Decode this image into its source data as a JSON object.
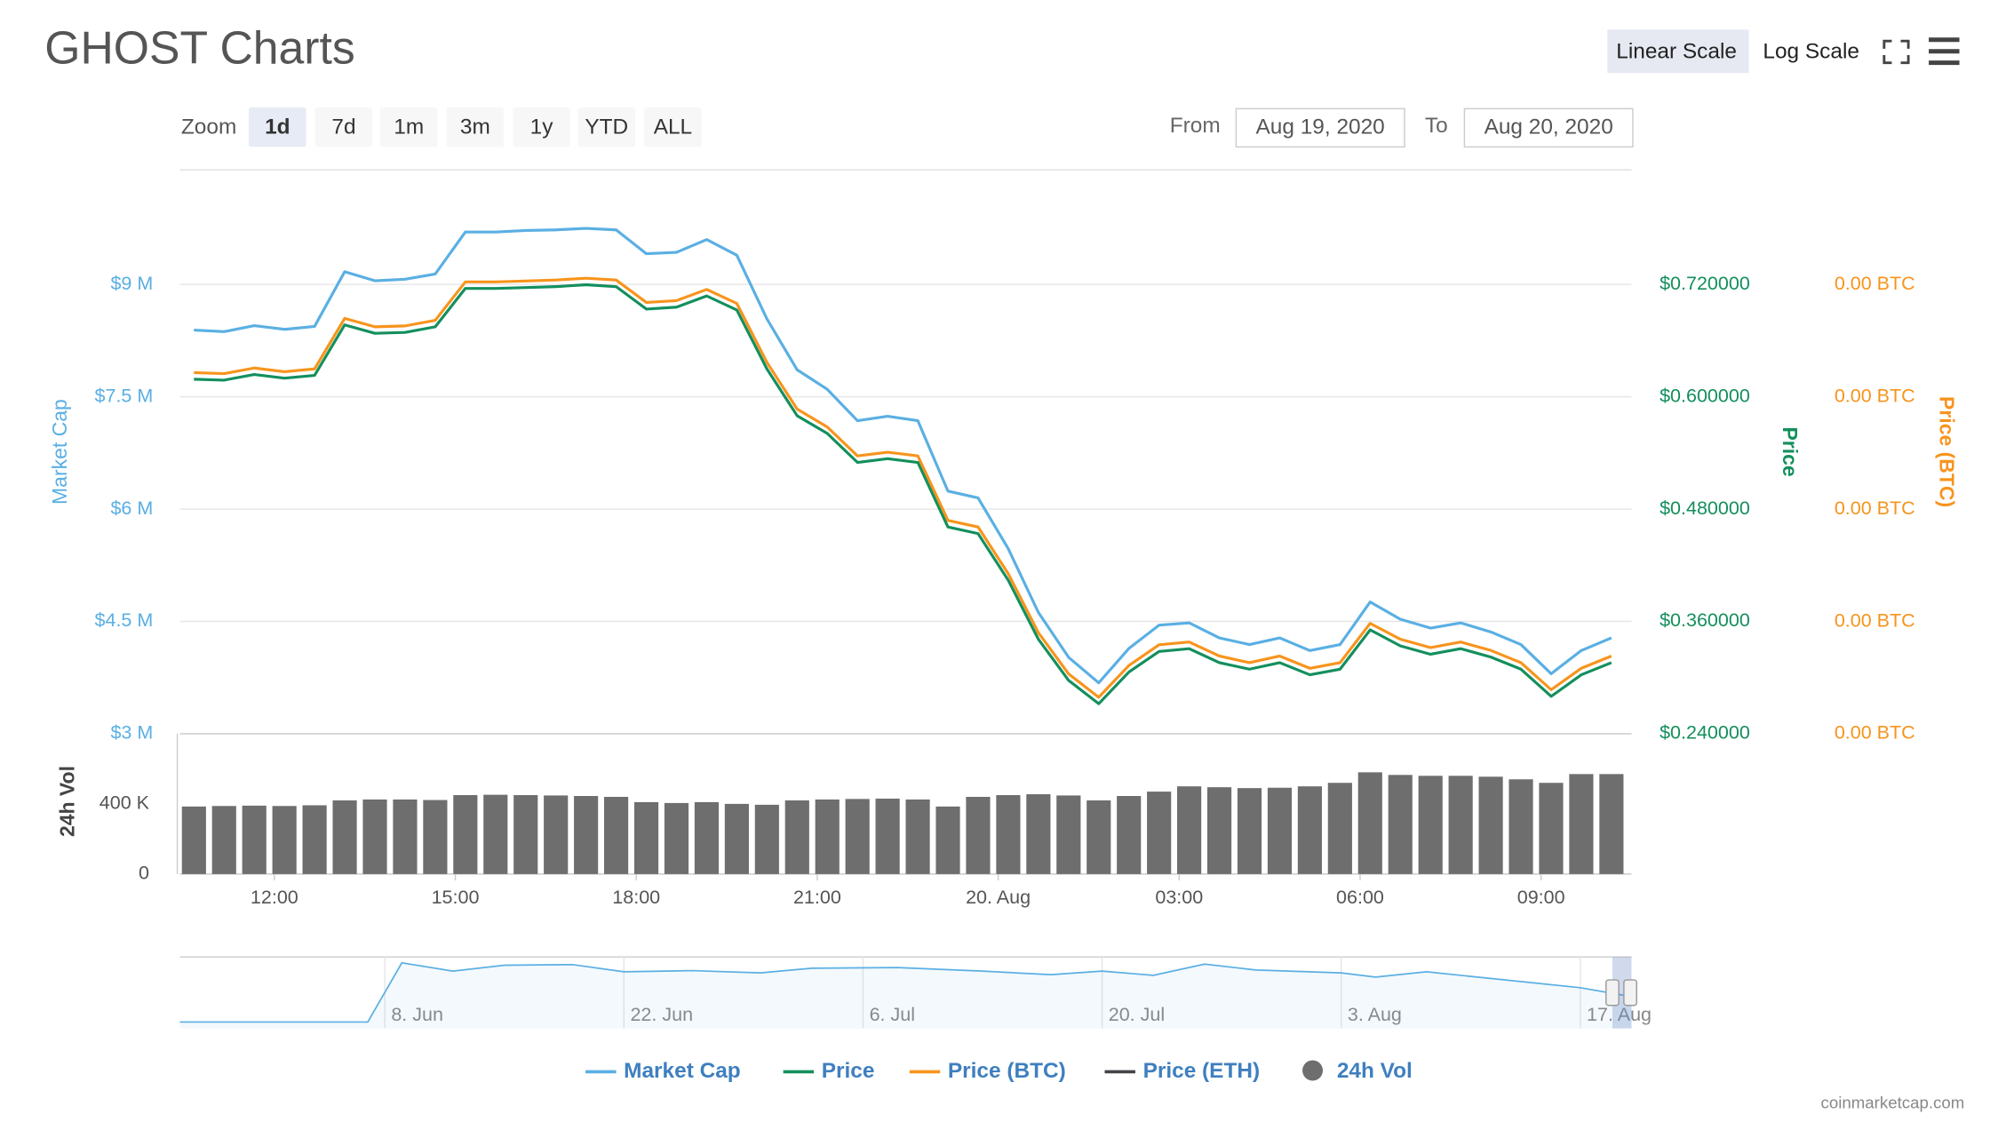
{
  "header": {
    "title": "GHOST Charts",
    "scale_buttons": [
      "Linear Scale",
      "Log Scale"
    ],
    "active_scale": "Linear Scale"
  },
  "toolbar": {
    "zoom_label": "Zoom",
    "zoom_buttons": [
      "1d",
      "7d",
      "1m",
      "3m",
      "1y",
      "YTD",
      "ALL"
    ],
    "active_zoom": "1d",
    "from_label": "From",
    "from_date": "Aug 19, 2020",
    "to_label": "To",
    "to_date": "Aug 20, 2020"
  },
  "chart_data": {
    "type": "line",
    "x": [
      "Aug 19 10:40",
      "Aug 19 11:10",
      "Aug 19 11:40",
      "Aug 19 12:10",
      "Aug 19 12:40",
      "Aug 19 13:10",
      "Aug 19 13:40",
      "Aug 19 14:10",
      "Aug 19 14:40",
      "Aug 19 15:10",
      "Aug 19 15:40",
      "Aug 19 16:10",
      "Aug 19 16:40",
      "Aug 19 17:10",
      "Aug 19 17:40",
      "Aug 19 18:10",
      "Aug 19 18:40",
      "Aug 19 19:10",
      "Aug 19 19:40",
      "Aug 19 20:10",
      "Aug 19 20:40",
      "Aug 19 21:10",
      "Aug 19 21:40",
      "Aug 19 22:10",
      "Aug 19 22:40",
      "Aug 19 23:10",
      "Aug 19 23:40",
      "Aug 20 00:10",
      "Aug 20 00:40",
      "Aug 20 01:10",
      "Aug 20 01:40",
      "Aug 20 02:10",
      "Aug 20 02:40",
      "Aug 20 03:10",
      "Aug 20 03:40",
      "Aug 20 04:10",
      "Aug 20 04:40",
      "Aug 20 05:10",
      "Aug 20 05:40",
      "Aug 20 06:10",
      "Aug 20 06:40",
      "Aug 20 07:10",
      "Aug 20 07:40",
      "Aug 20 08:10",
      "Aug 20 08:40",
      "Aug 20 09:10",
      "Aug 20 09:40",
      "Aug 20 10:10"
    ],
    "xlim": [
      "Aug 19 10:26",
      "Aug 20 10:30"
    ],
    "xticks": [
      {
        "value": "Aug 19 12:00",
        "label": "12:00"
      },
      {
        "value": "Aug 19 15:00",
        "label": "15:00"
      },
      {
        "value": "Aug 19 18:00",
        "label": "18:00"
      },
      {
        "value": "Aug 19 21:00",
        "label": "21:00"
      },
      {
        "value": "Aug 20 00:00",
        "label": "20. Aug"
      },
      {
        "value": "Aug 20 03:00",
        "label": "03:00"
      },
      {
        "value": "Aug 20 06:00",
        "label": "06:00"
      },
      {
        "value": "Aug 20 09:00",
        "label": "09:00"
      }
    ],
    "series": [
      {
        "name": "Market Cap",
        "color": "#5aafe3",
        "axis": "y",
        "values": [
          8390000,
          8370000,
          8450000,
          8400000,
          8440000,
          9170000,
          9050000,
          9070000,
          9140000,
          9700000,
          9700000,
          9720000,
          9730000,
          9750000,
          9730000,
          9410000,
          9430000,
          9600000,
          9390000,
          8540000,
          7860000,
          7600000,
          7180000,
          7240000,
          7180000,
          6240000,
          6150000,
          5470000,
          4620000,
          4020000,
          3680000,
          4140000,
          4450000,
          4480000,
          4280000,
          4190000,
          4280000,
          4110000,
          4190000,
          4760000,
          4530000,
          4410000,
          4480000,
          4360000,
          4190000,
          3800000,
          4110000,
          4280000
        ]
      },
      {
        "name": "Price",
        "color": "#138f5d",
        "axis": "y2",
        "values": [
          0.619,
          0.618,
          0.624,
          0.62,
          0.623,
          0.677,
          0.668,
          0.669,
          0.675,
          0.716,
          0.716,
          0.717,
          0.718,
          0.72,
          0.718,
          0.694,
          0.696,
          0.708,
          0.693,
          0.63,
          0.58,
          0.561,
          0.53,
          0.534,
          0.53,
          0.461,
          0.454,
          0.404,
          0.341,
          0.297,
          0.272,
          0.306,
          0.328,
          0.331,
          0.316,
          0.309,
          0.316,
          0.303,
          0.309,
          0.351,
          0.334,
          0.325,
          0.331,
          0.322,
          0.309,
          0.28,
          0.303,
          0.316
        ]
      },
      {
        "name": "Price (BTC)",
        "color": "#f7941d",
        "axis": "y3",
        "values": [
          5.217e-05,
          5.208e-05,
          5.258e-05,
          5.225e-05,
          5.25e-05,
          5.7e-05,
          5.625e-05,
          5.633e-05,
          5.683e-05,
          6.025e-05,
          6.025e-05,
          6.033e-05,
          6.042e-05,
          6.058e-05,
          6.042e-05,
          5.842e-05,
          5.858e-05,
          5.958e-05,
          5.833e-05,
          5.308e-05,
          4.892e-05,
          4.733e-05,
          4.475e-05,
          4.508e-05,
          4.475e-05,
          3.9e-05,
          3.842e-05,
          3.425e-05,
          2.9e-05,
          2.533e-05,
          2.325e-05,
          2.608e-05,
          2.792e-05,
          2.817e-05,
          2.692e-05,
          2.633e-05,
          2.692e-05,
          2.583e-05,
          2.633e-05,
          2.983e-05,
          2.842e-05,
          2.767e-05,
          2.817e-05,
          2.742e-05,
          2.633e-05,
          2.392e-05,
          2.583e-05,
          2.692e-05
        ]
      },
      {
        "name": "24h Vol",
        "color": "#6e6e6e",
        "axis": "y4",
        "type": "column",
        "values": [
          385000,
          388000,
          390000,
          388000,
          392000,
          420000,
          425000,
          425000,
          422000,
          450000,
          452000,
          450000,
          448000,
          445000,
          440000,
          410000,
          405000,
          410000,
          400000,
          395000,
          420000,
          425000,
          428000,
          430000,
          425000,
          385000,
          440000,
          450000,
          455000,
          448000,
          420000,
          445000,
          470000,
          500000,
          495000,
          490000,
          492000,
          500000,
          520000,
          580000,
          565000,
          560000,
          560000,
          555000,
          540000,
          520000,
          570000,
          570000
        ]
      }
    ],
    "ylabel": "Market Cap",
    "ylim": [
      3000000,
      10530000
    ],
    "yticks": [
      {
        "value": 3000000,
        "label": "$3 M"
      },
      {
        "value": 4500000,
        "label": "$4.5 M"
      },
      {
        "value": 6000000,
        "label": "$6 M"
      },
      {
        "value": 7500000,
        "label": "$7.5 M"
      },
      {
        "value": 9000000,
        "label": "$9 M"
      }
    ],
    "y2label": "Price",
    "y2lim": [
      0.24,
      0.8427
    ],
    "y2ticks": [
      {
        "value": 0.24,
        "label": "$0.240000"
      },
      {
        "value": 0.36,
        "label": "$0.360000"
      },
      {
        "value": 0.48,
        "label": "$0.480000"
      },
      {
        "value": 0.6,
        "label": "$0.600000"
      },
      {
        "value": 0.72,
        "label": "$0.720000"
      }
    ],
    "y3label": "Price (BTC)",
    "y3lim": [
      2e-05,
      7.023e-05
    ],
    "y3ticks": [
      {
        "value": 2e-05,
        "label": "0.00 BTC"
      },
      {
        "value": 3e-05,
        "label": "0.00 BTC"
      },
      {
        "value": 4e-05,
        "label": "0.00 BTC"
      },
      {
        "value": 5e-05,
        "label": "0.00 BTC"
      },
      {
        "value": 6e-05,
        "label": "0.00 BTC"
      }
    ],
    "y4label": "24h Vol",
    "y4lim": [
      0,
      800000
    ],
    "y4ticks": [
      0,
      {
        "value": 400000,
        "label": "400 K"
      }
    ],
    "grid": true
  },
  "navigator": {
    "x": [
      "27. May",
      "7. Jun",
      "9. Jun",
      "12. Jun",
      "15. Jun",
      "19. Jun",
      "22. Jun",
      "26. Jun",
      "30. Jun",
      "3. Jul",
      "8. Jul",
      "13. Jul",
      "17. Jul",
      "20. Jul",
      "23. Jul",
      "26. Jul",
      "29. Jul",
      "3. Aug",
      "5. Aug",
      "8. Aug",
      "12. Aug",
      "17. Aug",
      "20. Aug"
    ],
    "values": [
      0,
      0,
      10000000,
      8600000,
      9600000,
      9700000,
      8500000,
      8700000,
      8300000,
      9100000,
      9200000,
      8600000,
      8000000,
      8600000,
      7900000,
      9800000,
      8800000,
      8300000,
      7600000,
      8500000,
      7300000,
      5800000,
      4300000
    ],
    "xlim": [
      "27. May",
      "20. Aug"
    ],
    "ylim": [
      0,
      11000000
    ],
    "xticks": [
      "8. Jun",
      "22. Jun",
      "6. Jul",
      "20. Jul",
      "3. Aug",
      "17. Aug"
    ]
  },
  "legend_extra": [
    {
      "name": "Price (ETH)",
      "color": "#434348"
    }
  ],
  "credit": "coinmarketcap.com"
}
